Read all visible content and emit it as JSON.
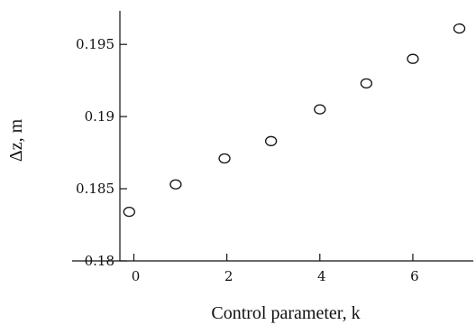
{
  "chart_data": {
    "type": "scatter",
    "xlabel": "Control parameter, k",
    "ylabel": "Δz, m",
    "xlim": [
      -0.3,
      7.3
    ],
    "ylim": [
      0.18,
      0.1972
    ],
    "x_ticks": [
      0,
      2,
      4,
      6
    ],
    "x_tick_labels": [
      "0",
      "2",
      "4",
      "6"
    ],
    "y_ticks": [
      0.18,
      0.185,
      0.19,
      0.195
    ],
    "y_tick_labels": [
      "0.18",
      "0.185",
      "0.19",
      "0.195"
    ],
    "grid": false,
    "marker": "open-circle",
    "series": [
      {
        "x": [
          -0.1,
          0.9,
          1.95,
          2.95,
          4.0,
          5.0,
          6.0,
          7.0
        ],
        "y": [
          0.1834,
          0.1853,
          0.1871,
          0.1883,
          0.1905,
          0.1923,
          0.194,
          0.1961
        ]
      }
    ]
  }
}
